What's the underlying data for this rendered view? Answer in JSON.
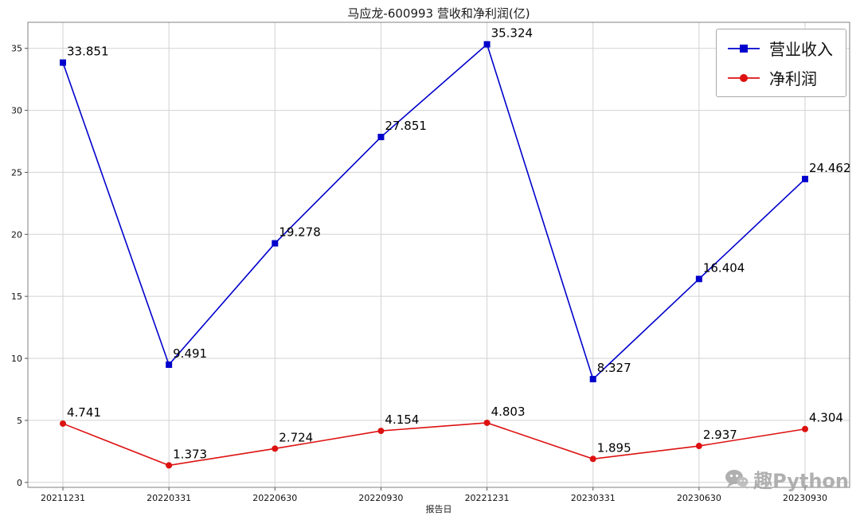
{
  "chart_data": {
    "type": "line",
    "title": "马应龙-600993 营收和净利润(亿)",
    "xlabel": "报告日",
    "ylabel": "",
    "categories": [
      "20211231",
      "20220331",
      "20220630",
      "20220930",
      "20221231",
      "20230331",
      "20230630",
      "20230930"
    ],
    "yticks": [
      0,
      5,
      10,
      15,
      20,
      25,
      30,
      35
    ],
    "ylim": [
      -0.4,
      37.1
    ],
    "grid": true,
    "legend_position": "upper right",
    "series": [
      {
        "name": "营业收入",
        "color": "#0000cc",
        "marker": "square",
        "values": [
          33.851,
          9.491,
          19.278,
          27.851,
          35.324,
          8.327,
          16.404,
          24.462
        ]
      },
      {
        "name": "净利润",
        "color": "#dd1111",
        "marker": "circle",
        "values": [
          4.741,
          1.373,
          2.724,
          4.154,
          4.803,
          1.895,
          2.937,
          4.304
        ]
      }
    ]
  },
  "watermark": {
    "text": "趣Python"
  }
}
